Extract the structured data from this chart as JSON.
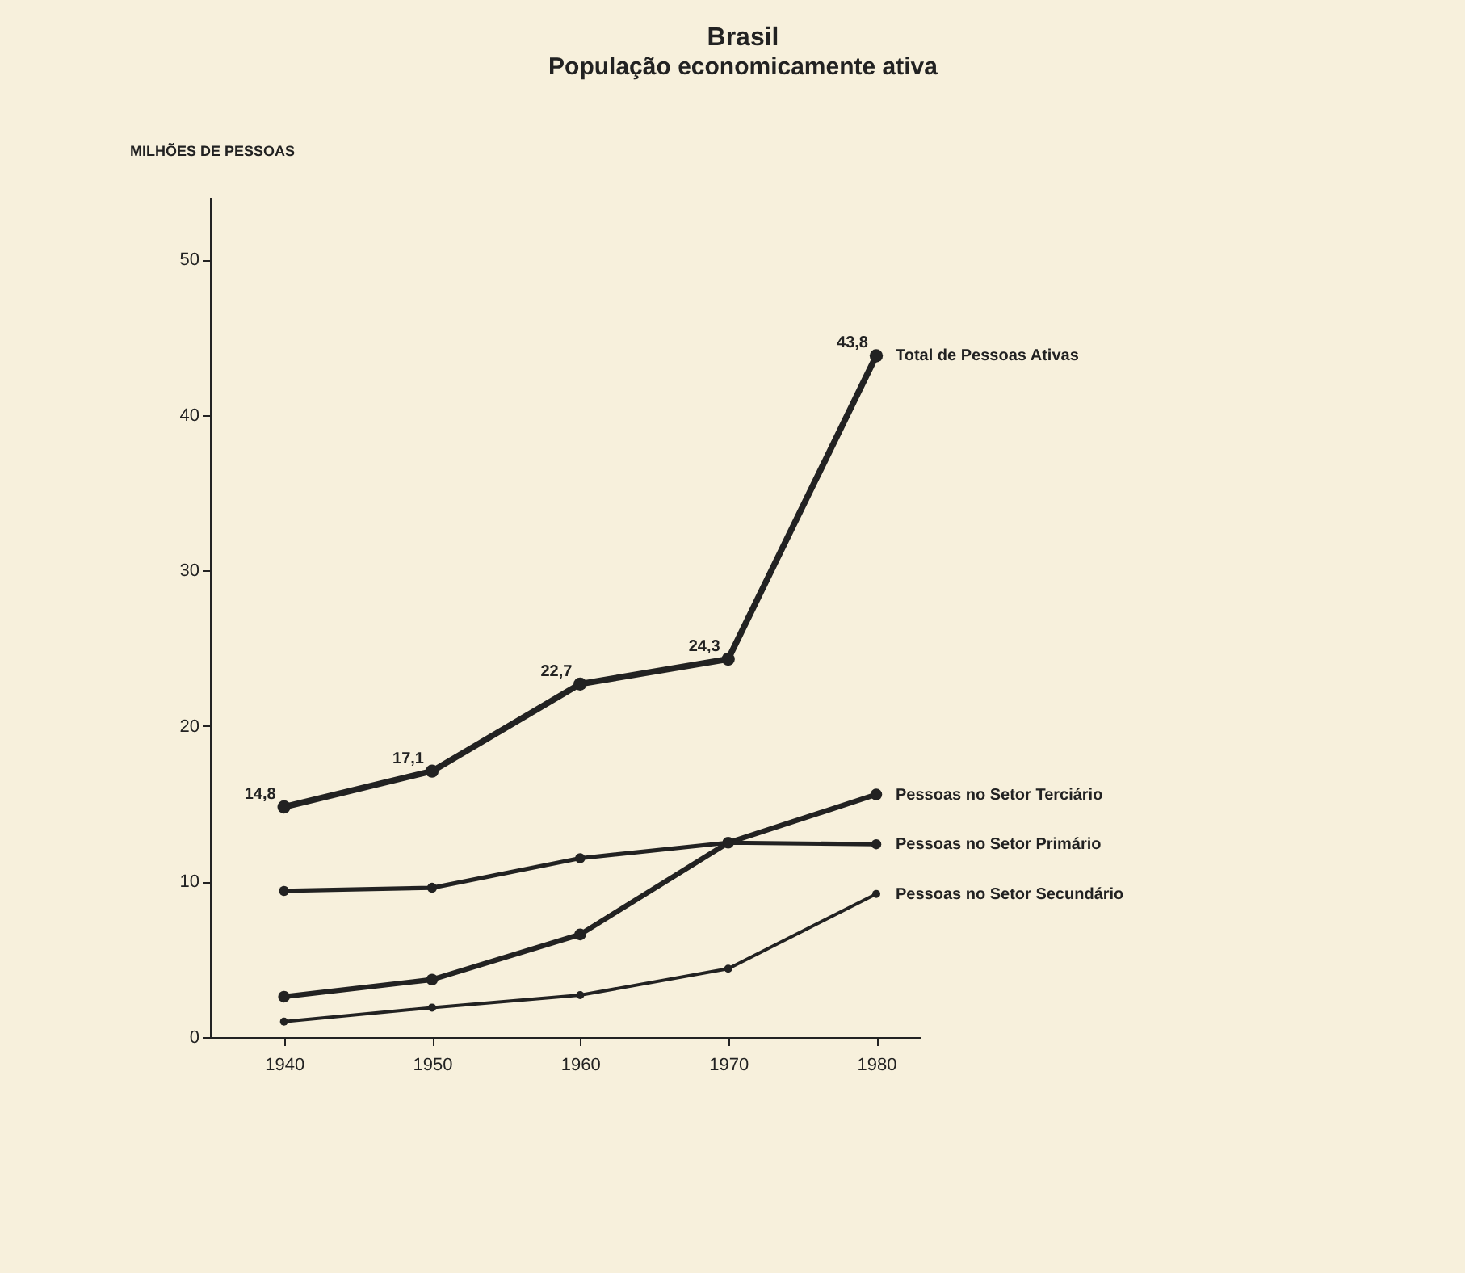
{
  "chart_data": {
    "type": "line",
    "title": "Brasil",
    "subtitle": "População economicamente ativa",
    "ylabel": "MILHÕES DE PESSOAS",
    "x": [
      1940,
      1950,
      1960,
      1970,
      1980
    ],
    "series": [
      {
        "name": "Total de Pessoas Ativas",
        "color": "#222222",
        "values": [
          14.8,
          17.1,
          22.7,
          24.3,
          43.8
        ],
        "value_labels": [
          "14,8",
          "17,1",
          "22,7",
          "24,3",
          "43,8"
        ]
      },
      {
        "name": "Pessoas no Setor Terciário",
        "color": "#222222",
        "values": [
          2.6,
          3.7,
          6.6,
          12.5,
          15.6
        ]
      },
      {
        "name": "Pessoas no Setor Primário",
        "color": "#222222",
        "values": [
          9.4,
          9.6,
          11.5,
          12.5,
          12.4
        ]
      },
      {
        "name": "Pessoas no Setor Secundário",
        "color": "#222222",
        "values": [
          1.0,
          1.9,
          2.7,
          4.4,
          9.2
        ]
      }
    ],
    "xlim": [
      1935,
      1983
    ],
    "xticks": [
      1940,
      1950,
      1960,
      1970,
      1980
    ],
    "ylim": [
      0,
      54
    ],
    "yticks": [
      0,
      10,
      20,
      30,
      40,
      50
    ],
    "grid": false,
    "marker": "circle",
    "line_style": "solid"
  }
}
